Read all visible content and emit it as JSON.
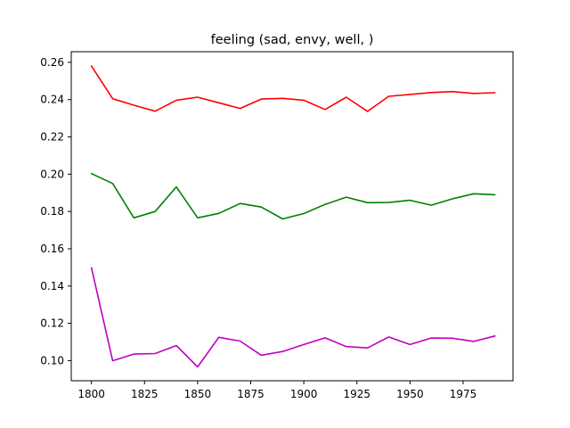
{
  "chart_data": {
    "type": "line",
    "title": "feeling (sad, envy, well, )",
    "xlabel": "",
    "ylabel": "",
    "xlim": [
      1790.5,
      1998.5
    ],
    "ylim": [
      0.0892,
      0.2657
    ],
    "x": [
      1800,
      1810,
      1820,
      1830,
      1840,
      1850,
      1860,
      1870,
      1880,
      1890,
      1900,
      1910,
      1920,
      1930,
      1940,
      1950,
      1960,
      1970,
      1980,
      1990
    ],
    "x_ticks": [
      1800,
      1825,
      1850,
      1875,
      1900,
      1925,
      1950,
      1975
    ],
    "y_ticks": [
      0.1,
      0.12,
      0.14,
      0.16,
      0.18,
      0.2,
      0.22,
      0.24,
      0.26
    ],
    "x_tick_labels": [
      "1800",
      "1825",
      "1850",
      "1875",
      "1900",
      "1925",
      "1950",
      "1975"
    ],
    "y_tick_labels": [
      "0.10",
      "0.12",
      "0.14",
      "0.16",
      "0.18",
      "0.20",
      "0.22",
      "0.24",
      "0.26"
    ],
    "grid": false,
    "legend": "none",
    "series": [
      {
        "color": "#ff0000",
        "values": [
          0.258,
          0.2405,
          0.237,
          0.2338,
          0.2397,
          0.2413,
          0.2383,
          0.2353,
          0.2403,
          0.2407,
          0.2397,
          0.2347,
          0.2413,
          0.2337,
          0.2418,
          0.2428,
          0.2438,
          0.2443,
          0.2433,
          0.2437
        ]
      },
      {
        "color": "#008000",
        "values": [
          0.2003,
          0.195,
          0.1766,
          0.18,
          0.1932,
          0.1766,
          0.179,
          0.1843,
          0.1824,
          0.176,
          0.1789,
          0.1838,
          0.1877,
          0.1847,
          0.1848,
          0.186,
          0.1834,
          0.1868,
          0.1895,
          0.189
        ]
      },
      {
        "color": "#bf00bf",
        "values": [
          0.1498,
          0.0999,
          0.1035,
          0.1038,
          0.1081,
          0.0966,
          0.1125,
          0.1105,
          0.1029,
          0.1049,
          0.1086,
          0.1122,
          0.1075,
          0.1068,
          0.1127,
          0.1086,
          0.1121,
          0.112,
          0.1103,
          0.1132
        ]
      }
    ]
  }
}
